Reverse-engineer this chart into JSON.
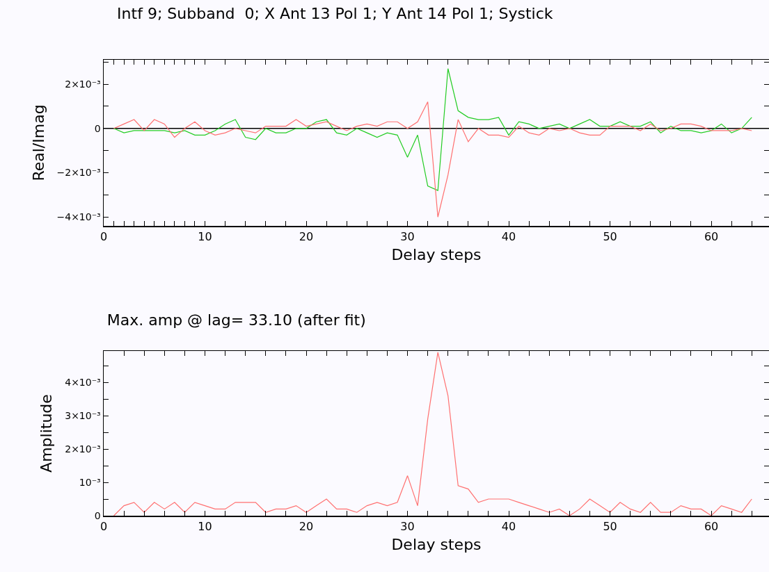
{
  "chart_data": [
    {
      "type": "line",
      "title": "Intf 9; Subband  0; X Ant 13 Pol 1; Y Ant 14 Pol 1; Systick",
      "xlabel": "Delay steps",
      "ylabel": "Real/Imag",
      "x": [
        1,
        2,
        3,
        4,
        5,
        6,
        7,
        8,
        9,
        10,
        11,
        12,
        13,
        14,
        15,
        16,
        17,
        18,
        19,
        20,
        21,
        22,
        23,
        24,
        25,
        26,
        27,
        28,
        29,
        30,
        31,
        32,
        33,
        34,
        35,
        36,
        37,
        38,
        39,
        40,
        41,
        42,
        43,
        44,
        45,
        46,
        47,
        48,
        49,
        50,
        51,
        52,
        53,
        54,
        55,
        56,
        57,
        58,
        59,
        60,
        61,
        62,
        63,
        64
      ],
      "series": [
        {
          "color": "#ff7070",
          "values": [
            0,
            0.0002,
            0.0004,
            -0.0001,
            0.0004,
            0.0002,
            -0.0004,
            0,
            0.0003,
            -0.0001,
            -0.0003,
            -0.0002,
            0,
            -0.0001,
            -0.0002,
            0.0001,
            0.0001,
            0.0001,
            0.0004,
            0.0001,
            0.0002,
            0.0003,
            0.0001,
            -0.0001,
            0.0001,
            0.0002,
            0.0001,
            0.0003,
            0.0003,
            0,
            0.0003,
            0.0012,
            -0.004,
            -0.0021,
            0.0004,
            -0.0006,
            0,
            -0.0003,
            -0.0003,
            -0.0004,
            0.0001,
            -0.0002,
            -0.0003,
            0,
            -0.0001,
            0,
            -0.0002,
            -0.0003,
            -0.0003,
            0.0001,
            0.0001,
            0.0001,
            -0.0001,
            0.0002,
            -0.0001,
            0,
            0.0002,
            0.0002,
            0.0001,
            -0.0001,
            -0.0001,
            -0.0001,
            0,
            -0.0001
          ]
        },
        {
          "color": "#22cc22",
          "values": [
            0,
            -0.0002,
            -0.0001,
            -0.0001,
            -0.0001,
            -0.0001,
            -0.0002,
            -0.0001,
            -0.0003,
            -0.0003,
            -0.0001,
            0.0002,
            0.0004,
            -0.0004,
            -0.0005,
            0,
            -0.0002,
            -0.0002,
            0,
            0,
            0.0003,
            0.0004,
            -0.0002,
            -0.0003,
            0,
            -0.0002,
            -0.0004,
            -0.0002,
            -0.0003,
            -0.0013,
            -0.0003,
            -0.0026,
            -0.0028,
            0.0027,
            0.0008,
            0.0005,
            0.0004,
            0.0004,
            0.0005,
            -0.0003,
            0.0003,
            0.0002,
            0,
            0.0001,
            0.0002,
            0,
            0.0002,
            0.0004,
            0.0001,
            0.0001,
            0.0003,
            0.0001,
            0.0001,
            0.0003,
            -0.0002,
            0.0001,
            -0.0001,
            -0.0001,
            -0.0002,
            -0.0001,
            0.0002,
            -0.0002,
            0,
            0.0005
          ]
        }
      ],
      "xlim": [
        0,
        65.7
      ],
      "xticks": [
        0,
        {
          "value": 1,
          "label": null
        },
        {
          "value": 2,
          "label": null
        },
        {
          "value": 3,
          "label": null
        },
        {
          "value": 4,
          "label": null
        },
        {
          "value": 5,
          "label": null
        },
        {
          "value": 6,
          "label": null
        },
        {
          "value": 7,
          "label": null
        },
        {
          "value": 8,
          "label": null
        },
        {
          "value": 9,
          "label": null
        },
        10,
        {
          "value": 12,
          "label": null
        },
        {
          "value": 14,
          "label": null
        },
        {
          "value": 16,
          "label": null
        },
        {
          "value": 18,
          "label": null
        },
        20,
        {
          "value": 22,
          "label": null
        },
        {
          "value": 24,
          "label": null
        },
        {
          "value": 26,
          "label": null
        },
        {
          "value": 28,
          "label": null
        },
        30,
        {
          "value": 32,
          "label": null
        },
        {
          "value": 34,
          "label": null
        },
        {
          "value": 36,
          "label": null
        },
        {
          "value": 38,
          "label": null
        },
        40,
        {
          "value": 42,
          "label": null
        },
        {
          "value": 44,
          "label": null
        },
        {
          "value": 46,
          "label": null
        },
        {
          "value": 48,
          "label": null
        },
        50,
        {
          "value": 52,
          "label": null
        },
        {
          "value": 54,
          "label": null
        },
        {
          "value": 56,
          "label": null
        },
        {
          "value": 58,
          "label": null
        },
        60,
        {
          "value": 62,
          "label": null
        },
        {
          "value": 64,
          "label": null
        }
      ],
      "ylim": [
        -0.0044,
        0.0031
      ],
      "yticks": [
        {
          "value": -0.004,
          "label": "−4×10⁻³"
        },
        {
          "value": -0.003,
          "label": null
        },
        {
          "value": -0.002,
          "label": "−2×10⁻³"
        },
        {
          "value": -0.001,
          "label": null
        },
        0,
        {
          "value": 0.001,
          "label": null
        },
        {
          "value": 0.002,
          "label": "2×10⁻³"
        },
        {
          "value": 0.003,
          "label": null
        }
      ],
      "ref_lines": [
        {
          "axis": "y",
          "value": 0,
          "color": "#000000"
        }
      ],
      "grid": false,
      "marker": "none",
      "line_style": "solid"
    },
    {
      "type": "line",
      "title": "Max. amp @ lag= 33.10 (after fit)",
      "xlabel": "Delay steps",
      "ylabel": "Amplitude",
      "x": [
        1,
        2,
        3,
        4,
        5,
        6,
        7,
        8,
        9,
        10,
        11,
        12,
        13,
        14,
        15,
        16,
        17,
        18,
        19,
        20,
        21,
        22,
        23,
        24,
        25,
        26,
        27,
        28,
        29,
        30,
        31,
        32,
        33,
        34,
        35,
        36,
        37,
        38,
        39,
        40,
        41,
        42,
        43,
        44,
        45,
        46,
        47,
        48,
        49,
        50,
        51,
        52,
        53,
        54,
        55,
        56,
        57,
        58,
        59,
        60,
        61,
        62,
        63,
        64
      ],
      "series": [
        {
          "color": "#ff7070",
          "values": [
            0,
            0.0003,
            0.0004,
            0.0001,
            0.0004,
            0.0002,
            0.0004,
            0.0001,
            0.0004,
            0.0003,
            0.0002,
            0.0002,
            0.0004,
            0.0004,
            0.0004,
            0.0001,
            0.0002,
            0.0002,
            0.0003,
            0.0001,
            0.0003,
            0.0005,
            0.0002,
            0.0002,
            0.0001,
            0.0003,
            0.0004,
            0.0003,
            0.0004,
            0.0012,
            0.0003,
            0.0029,
            0.0049,
            0.0036,
            0.0009,
            0.0008,
            0.0004,
            0.0005,
            0.0005,
            0.0005,
            0.0004,
            0.0003,
            0.0002,
            0.0001,
            0.0002,
            0,
            0.0002,
            0.0005,
            0.0003,
            0.0001,
            0.0004,
            0.0002,
            0.0001,
            0.0004,
            0.0001,
            0.0001,
            0.0003,
            0.0002,
            0.0002,
            0,
            0.0003,
            0.0002,
            0.0001,
            0.0005
          ]
        }
      ],
      "xlim": [
        0,
        65.7
      ],
      "xticks": [
        0,
        {
          "value": 2,
          "label": null
        },
        {
          "value": 4,
          "label": null
        },
        {
          "value": 6,
          "label": null
        },
        {
          "value": 8,
          "label": null
        },
        10,
        {
          "value": 12,
          "label": null
        },
        {
          "value": 14,
          "label": null
        },
        {
          "value": 16,
          "label": null
        },
        {
          "value": 18,
          "label": null
        },
        20,
        {
          "value": 22,
          "label": null
        },
        {
          "value": 24,
          "label": null
        },
        {
          "value": 26,
          "label": null
        },
        {
          "value": 28,
          "label": null
        },
        30,
        {
          "value": 32,
          "label": null
        },
        {
          "value": 34,
          "label": null
        },
        {
          "value": 36,
          "label": null
        },
        {
          "value": 38,
          "label": null
        },
        40,
        {
          "value": 42,
          "label": null
        },
        {
          "value": 44,
          "label": null
        },
        {
          "value": 46,
          "label": null
        },
        {
          "value": 48,
          "label": null
        },
        50,
        {
          "value": 52,
          "label": null
        },
        {
          "value": 54,
          "label": null
        },
        {
          "value": 56,
          "label": null
        },
        {
          "value": 58,
          "label": null
        },
        60,
        {
          "value": 62,
          "label": null
        },
        {
          "value": 64,
          "label": null
        }
      ],
      "ylim": [
        0,
        0.00494
      ],
      "yticks": [
        0,
        {
          "value": 0.0005,
          "label": null
        },
        {
          "value": 0.001,
          "label": "10⁻³"
        },
        {
          "value": 0.0015,
          "label": null
        },
        {
          "value": 0.002,
          "label": "2×10⁻³"
        },
        {
          "value": 0.0025,
          "label": null
        },
        {
          "value": 0.003,
          "label": "3×10⁻³"
        },
        {
          "value": 0.0035,
          "label": null
        },
        {
          "value": 0.004,
          "label": "4×10⁻³"
        },
        {
          "value": 0.0045,
          "label": null
        }
      ],
      "grid": false,
      "marker": "none",
      "line_style": "solid"
    }
  ]
}
